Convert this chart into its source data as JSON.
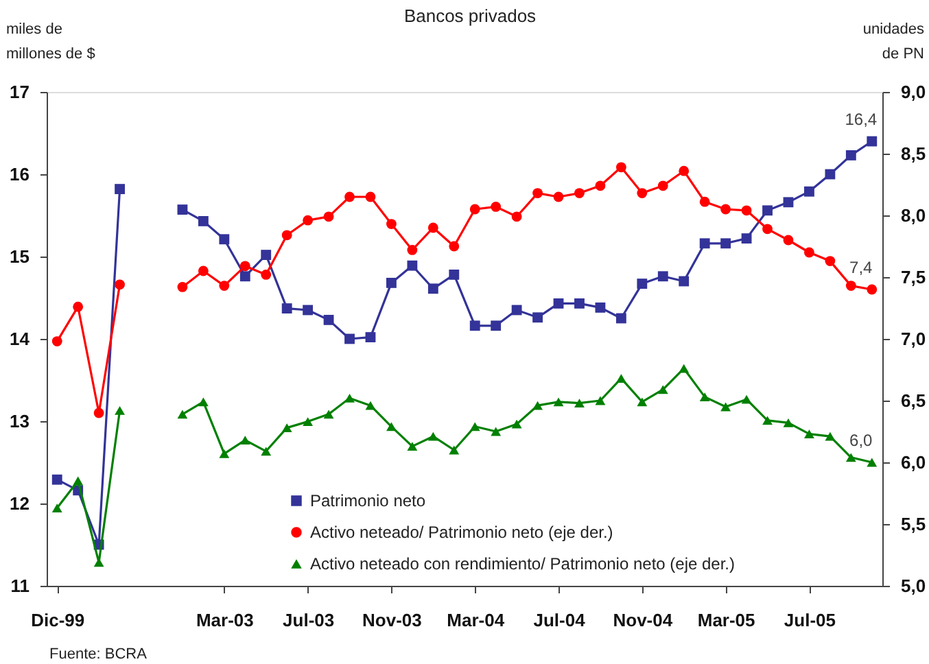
{
  "chart_data": {
    "type": "line",
    "title": "Bancos privados",
    "ylabel": "miles de\nmillones de $",
    "y2label": "unidades\nde PN",
    "categories": [
      "Dic-99",
      null,
      null,
      null,
      null,
      null,
      null,
      null,
      "Mar-03",
      null,
      null,
      null,
      "Jul-03",
      null,
      null,
      null,
      "Nov-03",
      null,
      null,
      null,
      "Mar-04",
      null,
      null,
      null,
      "Jul-04",
      null,
      null,
      null,
      "Nov-04",
      null,
      null,
      null,
      "Mar-05",
      null,
      null,
      null,
      "Jul-05",
      null,
      null,
      null
    ],
    "series": [
      {
        "name": "Patrimonio neto",
        "color": "#333399",
        "marker": "square",
        "values": [
          12.29,
          12.16,
          11.5,
          15.82,
          null,
          null,
          15.57,
          15.43,
          15.21,
          14.76,
          15.02,
          14.37,
          14.35,
          14.23,
          14.0,
          14.02,
          14.68,
          14.89,
          14.61,
          14.78,
          14.16,
          14.16,
          14.35,
          14.26,
          14.43,
          14.43,
          14.38,
          14.25,
          14.67,
          14.76,
          14.7,
          15.16,
          15.16,
          15.22,
          15.56,
          15.66,
          15.79,
          16.0,
          16.23,
          16.4
        ],
        "value_labels": [
          null,
          null,
          null,
          null,
          null,
          null,
          null,
          null,
          null,
          null,
          null,
          null,
          null,
          null,
          null,
          null,
          null,
          null,
          null,
          null,
          null,
          null,
          null,
          null,
          null,
          null,
          null,
          null,
          null,
          null,
          null,
          null,
          null,
          null,
          null,
          null,
          null,
          null,
          null,
          "16,4"
        ]
      },
      {
        "name": "Activo neteado/ Patrimonio neto (eje der.)",
        "color": "#ff0000",
        "marker": "circle",
        "axis": "y2",
        "values": [
          6.98,
          7.26,
          6.4,
          7.44,
          null,
          null,
          7.42,
          7.55,
          7.43,
          7.59,
          7.52,
          7.84,
          7.96,
          7.99,
          8.15,
          8.15,
          7.93,
          7.72,
          7.9,
          7.75,
          8.05,
          8.07,
          7.99,
          8.18,
          8.15,
          8.18,
          8.24,
          8.39,
          8.18,
          8.24,
          8.36,
          8.11,
          8.05,
          8.04,
          7.89,
          7.8,
          7.7,
          7.63,
          7.43,
          7.4
        ],
        "value_labels": [
          null,
          null,
          null,
          null,
          null,
          null,
          null,
          null,
          null,
          null,
          null,
          null,
          null,
          null,
          null,
          null,
          null,
          null,
          null,
          null,
          null,
          null,
          null,
          null,
          null,
          null,
          null,
          null,
          null,
          null,
          null,
          null,
          null,
          null,
          null,
          null,
          null,
          null,
          null,
          "7,4"
        ]
      },
      {
        "name": "Activo neteado con rendimiento/ Patrimonio neto (eje der.)",
        "color": "#008000",
        "marker": "triangle",
        "axis": "y2",
        "values": [
          5.63,
          5.85,
          5.19,
          6.42,
          null,
          null,
          6.39,
          6.49,
          6.07,
          6.18,
          6.09,
          6.28,
          6.33,
          6.39,
          6.52,
          6.46,
          6.29,
          6.13,
          6.21,
          6.1,
          6.29,
          6.25,
          6.31,
          6.46,
          6.49,
          6.48,
          6.5,
          6.68,
          6.49,
          6.59,
          6.76,
          6.53,
          6.45,
          6.51,
          6.34,
          6.32,
          6.23,
          6.21,
          6.04,
          6.0
        ],
        "value_labels": [
          null,
          null,
          null,
          null,
          null,
          null,
          null,
          null,
          null,
          null,
          null,
          null,
          null,
          null,
          null,
          null,
          null,
          null,
          null,
          null,
          null,
          null,
          null,
          null,
          null,
          null,
          null,
          null,
          null,
          null,
          null,
          null,
          null,
          null,
          null,
          null,
          null,
          null,
          null,
          "6,0"
        ]
      }
    ],
    "ylim": [
      11,
      17
    ],
    "yticks": [
      11,
      12,
      13,
      14,
      15,
      16,
      17
    ],
    "y2lim": [
      5,
      9
    ],
    "y2ticks": [
      {
        "value": 5,
        "label": "5,0"
      },
      {
        "value": 5.5,
        "label": "5,5"
      },
      {
        "value": 6,
        "label": "6,0"
      },
      {
        "value": 6.5,
        "label": "6,5"
      },
      {
        "value": 7,
        "label": "7,0"
      },
      {
        "value": 7.5,
        "label": "7,5"
      },
      {
        "value": 8,
        "label": "8,0"
      },
      {
        "value": 8.5,
        "label": "8,5"
      },
      {
        "value": 9,
        "label": "9,0"
      }
    ],
    "grid": false,
    "legend": "bottom",
    "line_style": "solid",
    "annotations": [
      "Fuente: BCRA"
    ]
  }
}
